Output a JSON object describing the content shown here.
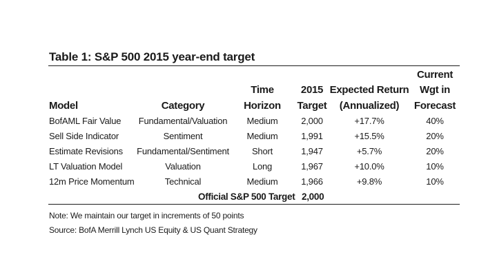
{
  "table": {
    "title": "Table 1: S&P 500 2015 year-end target",
    "headers": {
      "model": "Model",
      "category": "Category",
      "time_horizon_1": "Time",
      "time_horizon_2": "Horizon",
      "target_1": "2015",
      "target_2": "Target",
      "return_1": "Expected Return",
      "return_2": "(Annualized)",
      "weight_1": "Current",
      "weight_2": "Wgt in",
      "weight_3": "Forecast"
    },
    "rows": [
      {
        "model": "BofAML Fair Value",
        "category": "Fundamental/Valuation",
        "horizon": "Medium",
        "target": "2,000",
        "return": "+17.7%",
        "weight": "40%"
      },
      {
        "model": "Sell Side Indicator",
        "category": "Sentiment",
        "horizon": "Medium",
        "target": "1,991",
        "return": "+15.5%",
        "weight": "20%"
      },
      {
        "model": "Estimate Revisions",
        "category": "Fundamental/Sentiment",
        "horizon": "Short",
        "target": "1,947",
        "return": "+5.7%",
        "weight": "20%"
      },
      {
        "model": "LT Valuation Model",
        "category": "Valuation",
        "horizon": "Long",
        "target": "1,967",
        "return": "+10.0%",
        "weight": "10%"
      },
      {
        "model": "12m Price Momentum",
        "category": "Technical",
        "horizon": "Medium",
        "target": "1,966",
        "return": "+9.8%",
        "weight": "10%"
      }
    ],
    "official_label": "Official S&P 500 Target",
    "official_value": "2,000"
  },
  "notes": {
    "note": "Note: We maintain our target in increments of 50 points",
    "source": "Source: BofA Merrill Lynch US Equity & US Quant Strategy"
  }
}
